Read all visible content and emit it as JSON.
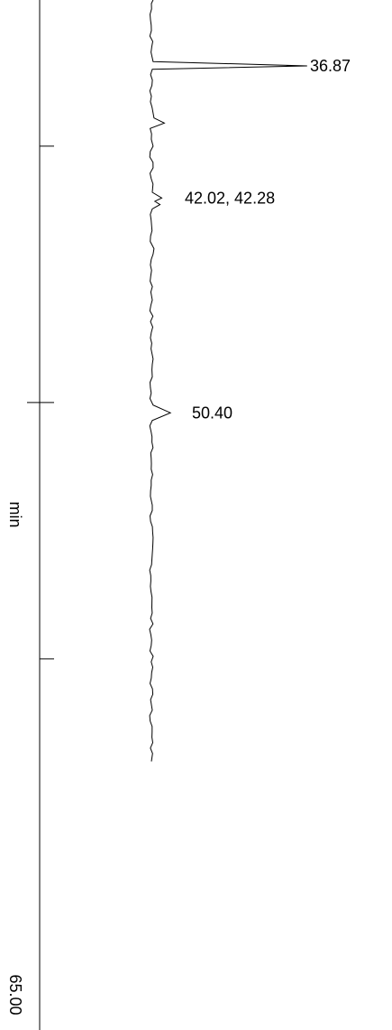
{
  "chart_data": {
    "type": "line",
    "orientation": "vertical",
    "x_axis": {
      "label": "min",
      "end_label": "65.00",
      "range": [
        30,
        65
      ],
      "ticks": [
        40,
        50,
        60
      ],
      "grid": false
    },
    "series": [
      {
        "color": "#000000",
        "x": [
          30.0,
          36.7,
          36.87,
          37.0,
          38.9,
          39.1,
          40.0,
          41.8,
          42.02,
          42.15,
          42.28,
          42.45,
          44.0,
          46.0,
          48.3,
          49.0,
          50.1,
          50.4,
          50.7,
          54.0,
          58.0,
          62.0,
          64.0
        ],
        "y": [
          0.2,
          0.2,
          18.0,
          0.1,
          0.3,
          1.5,
          0.2,
          0.1,
          1.2,
          0.4,
          1.0,
          0.1,
          0.3,
          0.1,
          0.2,
          0.1,
          0.2,
          2.2,
          0.1,
          0.1,
          0.05,
          0.1,
          0.0
        ]
      }
    ],
    "annotations": [
      {
        "x": 36.87,
        "text": "36.87"
      },
      {
        "x": 42.02,
        "text": "42.02,  42.28"
      },
      {
        "x": 50.4,
        "text": "50.40"
      }
    ]
  }
}
